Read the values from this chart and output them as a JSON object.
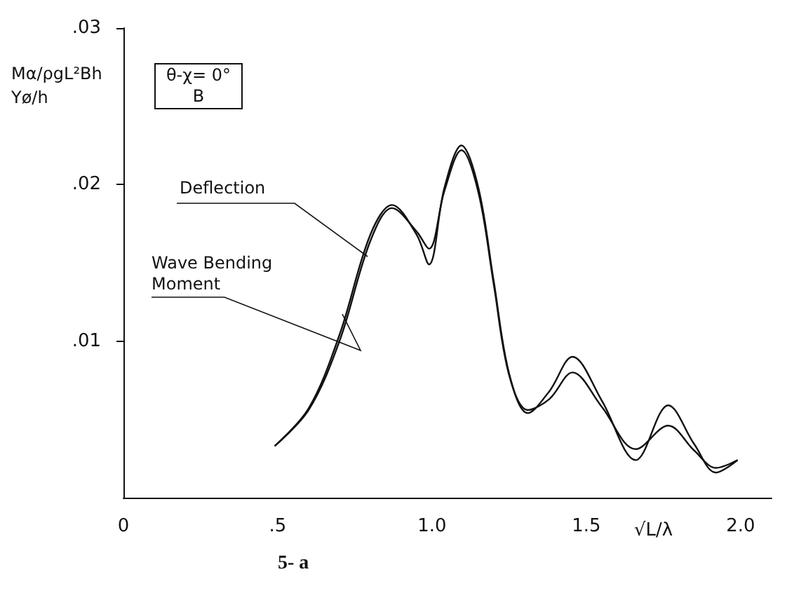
{
  "chart_data": {
    "type": "line",
    "ylabel": "Mα/ρgL²Bh\nYø/h",
    "xlabel": "√L/λ",
    "annotations": [
      "θ-χ= 0°",
      "B",
      "5- a"
    ],
    "x": [
      0.49,
      0.6,
      0.7,
      0.8,
      0.87,
      0.95,
      0.99,
      1.04,
      1.095,
      1.15,
      1.2,
      1.25,
      1.31,
      1.38,
      1.455,
      1.55,
      1.66,
      1.765,
      1.85,
      1.92,
      1.99
    ],
    "series": [
      {
        "name": "Deflection",
        "color": "#111111",
        "values": [
          0.0033,
          0.0057,
          0.0104,
          0.0168,
          0.0187,
          0.0168,
          0.0149,
          0.0198,
          0.0225,
          0.0198,
          0.0138,
          0.0079,
          0.0054,
          0.0068,
          0.009,
          0.0062,
          0.0024,
          0.0059,
          0.0034,
          0.0016,
          0.0024
        ]
      },
      {
        "name": "Wave Bending Moment",
        "color": "#111111",
        "values": [
          0.0033,
          0.0056,
          0.01,
          0.0164,
          0.0185,
          0.017,
          0.0159,
          0.0196,
          0.0222,
          0.0195,
          0.0136,
          0.0078,
          0.0056,
          0.0063,
          0.008,
          0.0058,
          0.0031,
          0.0046,
          0.003,
          0.0019,
          0.0024
        ]
      }
    ],
    "xlim": [
      0,
      2.1
    ],
    "xticks": [
      0,
      {
        "value": 0.5,
        "label": ".5"
      },
      {
        "value": 1,
        "label": "1.0"
      },
      {
        "value": 1.5,
        "label": "1.5"
      },
      {
        "value": 2,
        "label": "2.0"
      }
    ],
    "ylim": [
      0,
      0.03
    ],
    "yticks": [
      {
        "value": 0.01,
        "label": ".01"
      },
      {
        "value": 0.02,
        "label": ".02"
      },
      {
        "value": 0.03,
        "label": ".03"
      }
    ],
    "grid": false,
    "legend": false,
    "marker": "none",
    "line_style": "solid"
  }
}
